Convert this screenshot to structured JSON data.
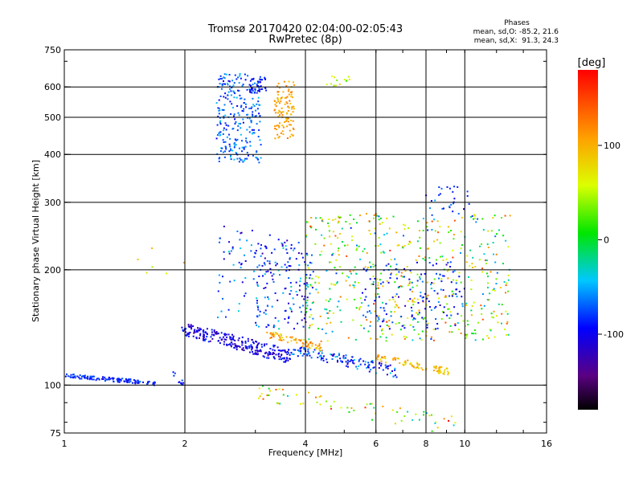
{
  "chart_data": {
    "type": "scatter",
    "title": "Tromsø 20170420 02:04:00-02:05:43",
    "subtitle": "RwPretec (8p)",
    "xlabel": "Frequency [MHz]",
    "ylabel": "Stationary phase Virtual Height [km]",
    "xscale": "log",
    "yscale": "log",
    "xlim": [
      1,
      16
    ],
    "ylim": [
      75,
      750
    ],
    "xticks": [
      1,
      2,
      4,
      6,
      8,
      10,
      16
    ],
    "xtick_labels": [
      "1",
      "2",
      "4",
      "6",
      "8",
      "10",
      "16"
    ],
    "yticks": [
      75,
      100,
      200,
      300,
      400,
      500,
      600,
      750
    ],
    "ytick_labels": [
      "75",
      "100",
      "200",
      "300",
      "400",
      "500",
      "600",
      "750"
    ],
    "grid": true,
    "phase_box": {
      "heading": "Phases",
      "line_o": "mean, sd,O: -85.2, 21.6",
      "line_x": "mean, sd,X:  91.3, 24.3"
    },
    "colorbar": {
      "label": "[deg]",
      "range": [
        -180,
        180
      ],
      "ticks": [
        100,
        0,
        -100
      ],
      "tick_labels": [
        "100",
        "0",
        "-100"
      ],
      "colormap": "rainbow"
    },
    "clusters": [
      {
        "f": [
          1.0,
          1.7
        ],
        "h": [
          101,
          106
        ],
        "phase": -85,
        "spread": 15,
        "n": 130
      },
      {
        "f": [
          1.85,
          2.0
        ],
        "h": [
          100,
          108
        ],
        "phase": -90,
        "spread": 20,
        "n": 12
      },
      {
        "f": [
          1.95,
          2.05
        ],
        "h": [
          135,
          142
        ],
        "phase": -100,
        "spread": 15,
        "n": 10
      },
      {
        "f": [
          2.0,
          3.7
        ],
        "h": [
          118,
          140
        ],
        "phase": -105,
        "spread": 20,
        "n": 260
      },
      {
        "f": [
          3.7,
          6.8
        ],
        "h": [
          108,
          124
        ],
        "phase": -80,
        "spread": 35,
        "n": 130
      },
      {
        "f": [
          3.2,
          4.4
        ],
        "h": [
          125,
          136
        ],
        "phase": 100,
        "spread": 30,
        "n": 70
      },
      {
        "f": [
          6.0,
          9.2
        ],
        "h": [
          108,
          118
        ],
        "phase": 90,
        "spread": 30,
        "n": 80
      },
      {
        "f": [
          2.4,
          3.1
        ],
        "h": [
          380,
          650
        ],
        "phase": -70,
        "spread": 25,
        "n": 260
      },
      {
        "f": [
          2.9,
          3.2
        ],
        "h": [
          580,
          640
        ],
        "phase": -90,
        "spread": 15,
        "n": 40
      },
      {
        "f": [
          3.35,
          3.75
        ],
        "h": [
          440,
          620
        ],
        "phase": 110,
        "spread": 20,
        "n": 110
      },
      {
        "f": [
          4.5,
          5.2
        ],
        "h": [
          600,
          640
        ],
        "phase": 60,
        "spread": 30,
        "n": 14
      },
      {
        "f": [
          2.4,
          3.3
        ],
        "h": [
          150,
          260
        ],
        "phase": -80,
        "spread": 35,
        "n": 70
      },
      {
        "f": [
          3.0,
          4.2
        ],
        "h": [
          140,
          240
        ],
        "phase": -80,
        "spread": 40,
        "n": 150
      },
      {
        "f": [
          4.0,
          13.0
        ],
        "h": [
          130,
          280
        ],
        "phase": 40,
        "spread": 90,
        "n": 540
      },
      {
        "f": [
          5.5,
          10.0
        ],
        "h": [
          140,
          210
        ],
        "phase": -90,
        "spread": 25,
        "n": 130
      },
      {
        "f": [
          8.0,
          10.5
        ],
        "h": [
          270,
          330
        ],
        "phase": -80,
        "spread": 30,
        "n": 30
      },
      {
        "f": [
          3.0,
          9.5
        ],
        "h": [
          78,
          96
        ],
        "phase": 60,
        "spread": 80,
        "n": 70
      },
      {
        "f": [
          1.5,
          2.0
        ],
        "h": [
          190,
          230
        ],
        "phase": 90,
        "spread": 40,
        "n": 6
      }
    ]
  }
}
